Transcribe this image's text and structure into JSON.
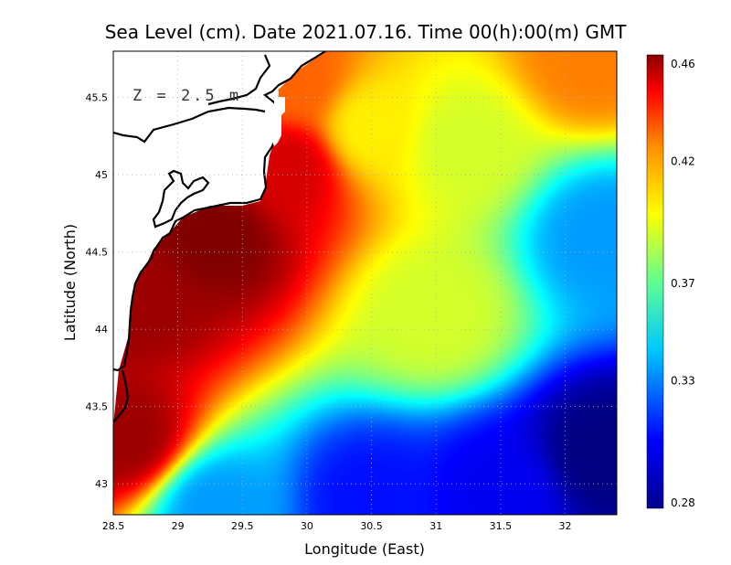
{
  "chart_data": {
    "type": "heatmap",
    "title": "Sea Level (cm). Date 2021.07.16. Time 00(h):00(m) GMT",
    "xlabel": "Longitude (East)",
    "ylabel": "Latitude (North)",
    "xlim": [
      28.5,
      32.4
    ],
    "ylim": [
      42.8,
      45.8
    ],
    "x_ticks": [
      "28.5",
      "29",
      "29.5",
      "30",
      "30.5",
      "31",
      "31.5",
      "32"
    ],
    "y_ticks": [
      "43",
      "43.5",
      "44",
      "44.5",
      "45",
      "45.5"
    ],
    "grid": true,
    "annotation": "Z = 2.5 m",
    "colorbar": {
      "range": [
        0.28,
        0.46
      ],
      "ticks": [
        "0.46",
        "0.42",
        "0.37",
        "0.33",
        "0.28"
      ],
      "colormap": "jet"
    },
    "field_anchors": [
      {
        "lon": 29.3,
        "lat": 44.6,
        "value": 0.46
      },
      {
        "lon": 28.7,
        "lat": 44.2,
        "value": 0.455
      },
      {
        "lon": 28.6,
        "lat": 43.3,
        "value": 0.455
      },
      {
        "lon": 29.85,
        "lat": 45.05,
        "value": 0.445
      },
      {
        "lon": 29.9,
        "lat": 45.6,
        "value": 0.42
      },
      {
        "lon": 32.2,
        "lat": 45.75,
        "value": 0.415
      },
      {
        "lon": 31.0,
        "lat": 44.1,
        "value": 0.385
      },
      {
        "lon": 30.5,
        "lat": 45.3,
        "value": 0.395
      },
      {
        "lon": 31.2,
        "lat": 45.2,
        "value": 0.385
      },
      {
        "lon": 32.3,
        "lat": 44.6,
        "value": 0.33
      },
      {
        "lon": 32.3,
        "lat": 43.2,
        "value": 0.28
      },
      {
        "lon": 31.5,
        "lat": 42.95,
        "value": 0.3
      },
      {
        "lon": 30.5,
        "lat": 42.9,
        "value": 0.305
      },
      {
        "lon": 29.3,
        "lat": 42.85,
        "value": 0.33
      }
    ]
  },
  "colors": {
    "coastline": "#000000",
    "land": "#ffffff",
    "grid": "#b0b0b0"
  }
}
